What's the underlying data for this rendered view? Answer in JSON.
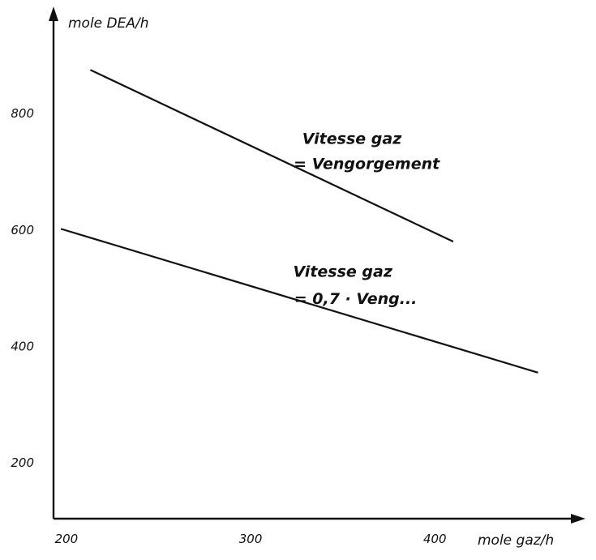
{
  "chart_data": {
    "type": "line",
    "title": "",
    "xlabel": "mole gaz/h",
    "ylabel": "mole DEA/h",
    "xlim": [
      193,
      480
    ],
    "ylim": [
      100,
      970
    ],
    "x_ticks": [
      200,
      300,
      400
    ],
    "y_ticks": [
      200,
      400,
      600,
      800
    ],
    "grid": false,
    "series": [
      {
        "x": [
          213,
          410
        ],
        "y": [
          875,
          580
        ]
      },
      {
        "x": [
          197,
          456
        ],
        "y": [
          602,
          355
        ]
      }
    ],
    "annotations": [
      {
        "text": "Vitesse gaz",
        "x": 355,
        "y": 748
      },
      {
        "text": "= Vengorgement",
        "x": 363,
        "y": 705
      },
      {
        "text": "Vitesse gaz",
        "x": 350,
        "y": 520
      },
      {
        "text": "= 0,7 · Veng...",
        "x": 357,
        "y": 473
      }
    ]
  }
}
